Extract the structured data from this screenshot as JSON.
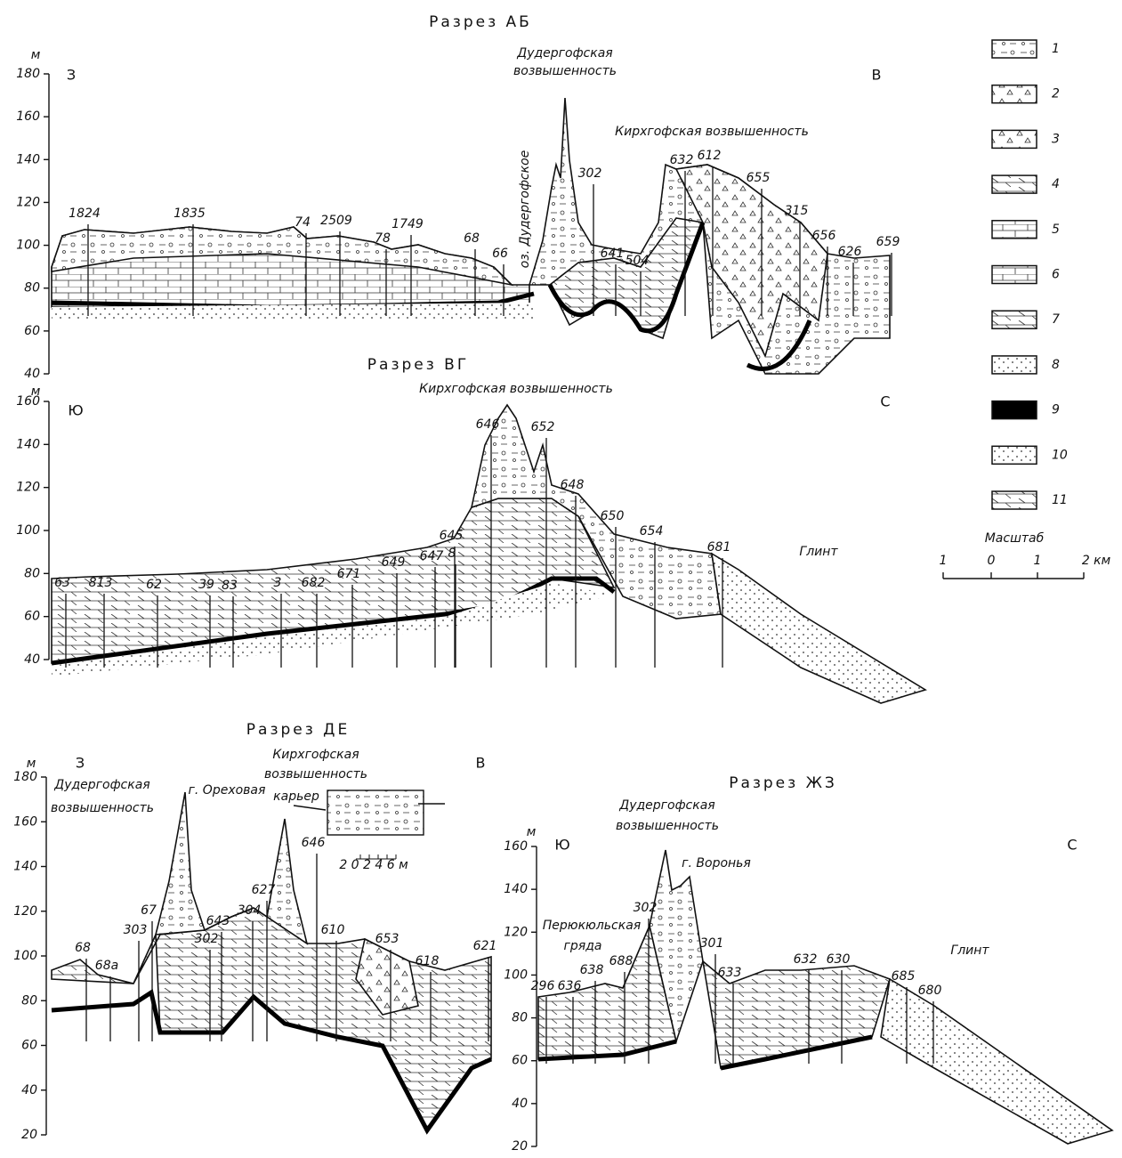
{
  "sections": [
    {
      "title": "Разрез АБ",
      "unit": "м",
      "yticks": [
        "180",
        "160",
        "140",
        "120",
        "100",
        "80",
        "60",
        "40"
      ],
      "left": "З",
      "right": "В",
      "places": [
        "Дудергофская",
        "возвышенность",
        "Кирхгофская возвышенность",
        "оз. Дудергофское"
      ],
      "wells": [
        "1824",
        "1835",
        "74",
        "2509",
        "78",
        "1749",
        "68",
        "66",
        "302",
        "641",
        "504",
        "632",
        "612",
        "655",
        "315",
        "656",
        "626",
        "659"
      ]
    },
    {
      "title": "Разрез ВГ",
      "unit": "м",
      "yticks": [
        "160",
        "140",
        "120",
        "100",
        "80",
        "60",
        "40"
      ],
      "left": "Ю",
      "right": "С",
      "places": [
        "Кирхгофская возвышенность",
        "Глинт"
      ],
      "wells": [
        "63",
        "813",
        "62",
        "39",
        "83",
        "3",
        "682",
        "671",
        "649",
        "647",
        "8",
        "645",
        "646",
        "652",
        "648",
        "650",
        "654",
        "681"
      ]
    },
    {
      "title": "Разрез ДЕ",
      "unit": "м",
      "yticks": [
        "180",
        "160",
        "140",
        "120",
        "100",
        "80",
        "60",
        "40",
        "20"
      ],
      "left": "З",
      "right": "В",
      "places": [
        "Дудергофская",
        "возвышенность",
        "г. Ореховая",
        "Кирхгофская",
        "возвышенность",
        "карьер",
        "2 0 2 4 6 м"
      ],
      "wells": [
        "68",
        "68а",
        "67",
        "303",
        "302",
        "643",
        "304",
        "627",
        "646",
        "610",
        "653",
        "618",
        "621"
      ]
    },
    {
      "title": "Разрез ЖЗ",
      "unit": "м",
      "yticks": [
        "160",
        "140",
        "120",
        "100",
        "80",
        "60",
        "40",
        "20"
      ],
      "left": "Ю",
      "right": "С",
      "places": [
        "Дудергофская",
        "возвышенность",
        "г. Воронья",
        "Перюкюльская",
        "гряда",
        "Глинт"
      ],
      "wells": [
        "302",
        "296",
        "636",
        "638",
        "688",
        "301",
        "633",
        "632",
        "630",
        "685",
        "680"
      ]
    }
  ],
  "legend": {
    "items": [
      "1",
      "2",
      "3",
      "4",
      "5",
      "6",
      "7",
      "8",
      "9",
      "10",
      "11"
    ],
    "scale_title": "Масштаб",
    "scale_labels": [
      "1",
      "0",
      "1",
      "2 км"
    ]
  }
}
